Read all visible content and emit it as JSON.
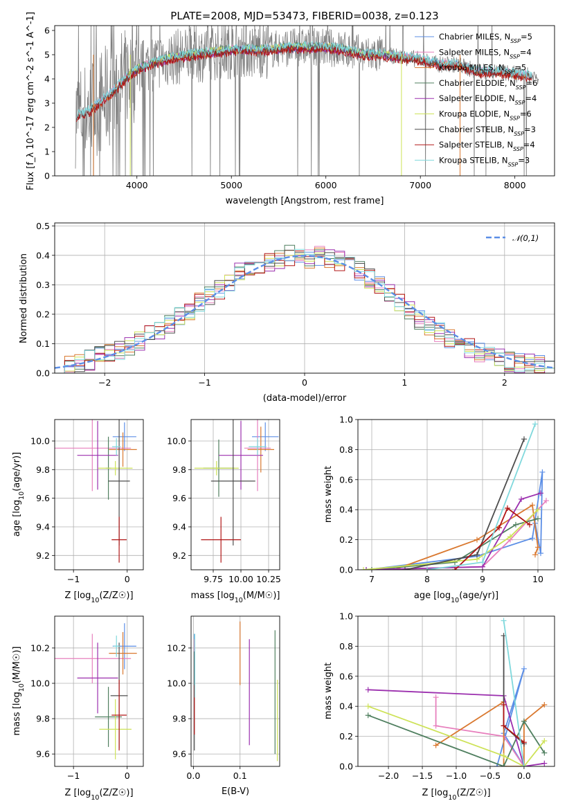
{
  "colors": {
    "Chabrier MILES": "#5b8ee6",
    "Salpeter MILES": "#e77fbd",
    "Kroupa MILES": "#d9782f",
    "Chabrier ELODIE": "#4f7f5f",
    "Salpeter ELODIE": "#9b2fae",
    "Kroupa ELODIE": "#cde257",
    "Chabrier STELIB": "#4d4d4d",
    "Salpeter STELIB": "#b01515",
    "Kroupa STELIB": "#7fd8dc",
    "normal_curve": "#5b8ee6"
  },
  "chart_data": [
    {
      "id": "spectrum",
      "type": "line",
      "title": "PLATE=2008, MJD=53473, FIBERID=0038, z=0.123",
      "xlabel": "wavelength [Angstrom, rest frame]",
      "ylabel": "Flux [f_λ 10^-17 erg cm^-2 s^-1 A^-1]",
      "xlim": [
        3130,
        8420
      ],
      "ylim": [
        0,
        6.2
      ],
      "xticks": [
        4000,
        5000,
        6000,
        7000,
        8000
      ],
      "yticks": [
        0,
        1,
        2,
        3,
        4,
        5,
        6
      ],
      "data_series": {
        "name": "",
        "color": "#808080",
        "x": [
          3400,
          3500,
          3600,
          3700,
          3800,
          3900,
          4000,
          4200,
          4400,
          4600,
          4800,
          5000,
          5200,
          5400,
          5600,
          5800,
          6000,
          6200,
          6400,
          6600,
          6800,
          7000,
          7200,
          7400,
          7600,
          7800,
          8000,
          8200
        ],
        "y": [
          2.5,
          2.7,
          3.0,
          3.3,
          3.7,
          4.1,
          4.4,
          4.7,
          4.9,
          5.0,
          5.1,
          5.2,
          5.2,
          5.2,
          5.3,
          5.3,
          5.3,
          5.2,
          5.0,
          5.0,
          4.9,
          4.8,
          4.6,
          4.6,
          4.3,
          4.3,
          4.2,
          4.1
        ]
      },
      "model_series": [
        {
          "name": "Chabrier MILES, N_SSP=5",
          "legend_label": "Chabrier MILES, N",
          "legend_sub": "SSP",
          "legend_n": "=5",
          "y_offset": 0.0
        },
        {
          "name": "Salpeter MILES, N_SSP=4",
          "legend_label": "Salpeter MILES, N",
          "legend_sub": "SSP",
          "legend_n": "=4",
          "y_offset": 0.03
        },
        {
          "name": "Kroupa MILES, N_SSP=5",
          "legend_label": "Kroupa MILES, N",
          "legend_sub": "SSP",
          "legend_n": "=5",
          "y_offset": -0.03
        },
        {
          "name": "Chabrier ELODIE, N_SSP=6",
          "legend_label": "Chabrier ELODIE, N",
          "legend_sub": "SSP",
          "legend_n": "=6",
          "y_offset": 0.05
        },
        {
          "name": "Salpeter ELODIE, N_SSP=4",
          "legend_label": "Salpeter ELODIE, N",
          "legend_sub": "SSP",
          "legend_n": "=4",
          "y_offset": -0.05
        },
        {
          "name": "Kroupa ELODIE, N_SSP=6",
          "legend_label": "Kroupa ELODIE, N",
          "legend_sub": "SSP",
          "legend_n": "=6",
          "y_offset": 0.02
        },
        {
          "name": "Chabrier STELIB, N_SSP=3",
          "legend_label": "Chabrier STELIB, N",
          "legend_sub": "SSP",
          "legend_n": "=3",
          "y_offset": -0.02
        },
        {
          "name": "Salpeter STELIB, N_SSP=4",
          "legend_label": "Salpeter STELIB, N",
          "legend_sub": "SSP",
          "legend_n": "=4",
          "y_offset": -0.1
        },
        {
          "name": "Kroupa STELIB, N_SSP=3",
          "legend_label": "Kroupa STELIB, N",
          "legend_sub": "SSP",
          "legend_n": "=3",
          "y_offset": 0.08
        }
      ],
      "legend_position": "upper right"
    },
    {
      "id": "residuals",
      "type": "histogram",
      "xlabel": "(data-model)/error",
      "ylabel": "Normed distribution",
      "xlim": [
        -2.5,
        2.5
      ],
      "ylim": [
        0,
        0.51
      ],
      "xticks": [
        -2,
        -1,
        0,
        1,
        2
      ],
      "yticks": [
        0.0,
        0.1,
        0.2,
        0.3,
        0.4,
        0.5
      ],
      "bin_edges": [
        -2.5,
        -2.4,
        -2.3,
        -2.2,
        -2.1,
        -2.0,
        -1.9,
        -1.8,
        -1.7,
        -1.6,
        -1.5,
        -1.4,
        -1.3,
        -1.2,
        -1.1,
        -1.0,
        -0.9,
        -0.8,
        -0.7,
        -0.6,
        -0.5,
        -0.4,
        -0.3,
        -0.2,
        -0.1,
        0.0,
        0.1,
        0.2,
        0.3,
        0.4,
        0.5,
        0.6,
        0.7,
        0.8,
        0.9,
        1.0,
        1.1,
        1.2,
        1.3,
        1.4,
        1.5,
        1.6,
        1.7,
        1.8,
        1.9,
        2.0,
        2.1,
        2.2,
        2.3,
        2.4,
        2.5
      ],
      "base_density": [
        0.02,
        0.025,
        0.035,
        0.045,
        0.06,
        0.07,
        0.08,
        0.095,
        0.11,
        0.13,
        0.15,
        0.17,
        0.19,
        0.21,
        0.24,
        0.26,
        0.28,
        0.31,
        0.34,
        0.36,
        0.37,
        0.38,
        0.39,
        0.4,
        0.39,
        0.39,
        0.4,
        0.39,
        0.38,
        0.37,
        0.35,
        0.32,
        0.3,
        0.27,
        0.24,
        0.21,
        0.18,
        0.16,
        0.14,
        0.12,
        0.1,
        0.085,
        0.07,
        0.06,
        0.05,
        0.04,
        0.035,
        0.03,
        0.025,
        0.02
      ],
      "curve": {
        "name": "𝒩(0,1)",
        "mean": 0,
        "sigma": 1,
        "style": "dashed"
      },
      "legend_position": "upper right"
    },
    {
      "id": "age_vs_Z",
      "type": "errorbar",
      "xlabel_main": "Z [log",
      "xlabel_sub": "10",
      "xlabel_rest": "(Z/Z☉)]",
      "ylabel_main": "age  [log",
      "ylabel_sub": "10",
      "ylabel_rest": "(age/yr)]",
      "xlim": [
        -1.35,
        0.3
      ],
      "ylim": [
        9.1,
        10.15
      ],
      "xticks": [
        -1,
        0
      ],
      "yticks": [
        9.2,
        9.4,
        9.6,
        9.8,
        10.0
      ],
      "points": [
        {
          "series": "Chabrier MILES",
          "x": -0.05,
          "y": 10.03,
          "xerr": 0.22,
          "yerr": 0.1
        },
        {
          "series": "Salpeter MILES",
          "x": -0.65,
          "y": 9.95,
          "xerr": 0.72,
          "yerr": 0.3
        },
        {
          "series": "Kroupa MILES",
          "x": -0.08,
          "y": 9.94,
          "xerr": 0.26,
          "yerr": 0.12
        },
        {
          "series": "Chabrier ELODIE",
          "x": -0.35,
          "y": 9.81,
          "xerr": 0.05,
          "yerr": 0.22
        },
        {
          "series": "Salpeter ELODIE",
          "x": -0.55,
          "y": 9.9,
          "xerr": 0.38,
          "yerr": 0.24
        },
        {
          "series": "Kroupa ELODIE",
          "x": -0.22,
          "y": 9.81,
          "xerr": 0.32,
          "yerr": 0.05
        },
        {
          "series": "Chabrier STELIB",
          "x": -0.15,
          "y": 9.72,
          "xerr": 0.2,
          "yerr": 0.45
        },
        {
          "series": "Salpeter STELIB",
          "x": -0.15,
          "y": 9.31,
          "xerr": 0.14,
          "yerr": 0.16
        },
        {
          "series": "Kroupa STELIB",
          "x": -0.2,
          "y": 9.96,
          "xerr": 0.08,
          "yerr": 0.06
        }
      ]
    },
    {
      "id": "age_vs_mass",
      "type": "errorbar",
      "xlabel_main": "mass [log",
      "xlabel_sub": "10",
      "xlabel_rest": "(M/M☉)]",
      "xlim": [
        9.55,
        10.35
      ],
      "ylim": [
        9.1,
        10.15
      ],
      "xticks": [
        9.75,
        10.0,
        10.25
      ],
      "xtick_labels": [
        "9.75",
        "10.00",
        "10.25"
      ],
      "yticks": [
        9.2,
        9.4,
        9.6,
        9.8,
        10.0
      ],
      "points": [
        {
          "series": "Chabrier MILES",
          "x": 10.22,
          "y": 10.03,
          "xerr": 0.12,
          "yerr": 0.1
        },
        {
          "series": "Salpeter MILES",
          "x": 10.15,
          "y": 9.95,
          "xerr": 0.12,
          "yerr": 0.3
        },
        {
          "series": "Kroupa MILES",
          "x": 10.18,
          "y": 9.94,
          "xerr": 0.12,
          "yerr": 0.16
        },
        {
          "series": "Chabrier ELODIE",
          "x": 9.8,
          "y": 9.81,
          "xerr": 0.14,
          "yerr": 0.2
        },
        {
          "series": "Salpeter ELODIE",
          "x": 10.0,
          "y": 9.9,
          "xerr": 0.2,
          "yerr": 0.24
        },
        {
          "series": "Kroupa ELODIE",
          "x": 9.78,
          "y": 9.81,
          "xerr": 0.2,
          "yerr": 0.05
        },
        {
          "series": "Chabrier STELIB",
          "x": 9.93,
          "y": 9.72,
          "xerr": 0.2,
          "yerr": 0.45
        },
        {
          "series": "Salpeter STELIB",
          "x": 9.82,
          "y": 9.31,
          "xerr": 0.18,
          "yerr": 0.16
        },
        {
          "series": "Kroupa STELIB",
          "x": 10.15,
          "y": 9.96,
          "xerr": 0.08,
          "yerr": 0.06
        }
      ]
    },
    {
      "id": "massweight_vs_age",
      "type": "line",
      "xlabel_main": "age  [log",
      "xlabel_sub": "10",
      "xlabel_rest": "(age/yr)]",
      "ylabel": "mass weight",
      "xlim": [
        6.75,
        10.3
      ],
      "ylim": [
        0,
        1.0
      ],
      "xticks": [
        7,
        8,
        9,
        10
      ],
      "yticks": [
        0.0,
        0.2,
        0.4,
        0.6,
        0.8,
        1.0
      ],
      "series": [
        {
          "series": "Chabrier MILES",
          "x": [
            6.9,
            8.9,
            9.9,
            10.08,
            10.05,
            9.95
          ],
          "y": [
            0.0,
            0.09,
            0.21,
            0.65,
            0.11,
            0.31
          ]
        },
        {
          "series": "Salpeter MILES",
          "x": [
            7.0,
            9.0,
            9.5,
            10.15
          ],
          "y": [
            0.0,
            0.02,
            0.2,
            0.46
          ]
        },
        {
          "series": "Kroupa MILES",
          "x": [
            7.4,
            8.9,
            9.9,
            10.0,
            9.95
          ],
          "y": [
            0.0,
            0.2,
            0.43,
            0.15,
            0.1
          ]
        },
        {
          "series": "Chabrier ELODIE",
          "x": [
            7.0,
            8.5,
            9.6,
            10.0
          ],
          "y": [
            0.0,
            0.05,
            0.3,
            0.34
          ]
        },
        {
          "series": "Salpeter ELODIE",
          "x": [
            6.9,
            9.0,
            9.7,
            10.05
          ],
          "y": [
            0.0,
            0.02,
            0.47,
            0.51
          ]
        },
        {
          "series": "Kroupa ELODIE",
          "x": [
            6.85,
            8.9,
            9.5,
            10.0
          ],
          "y": [
            0.0,
            0.07,
            0.22,
            0.4
          ]
        },
        {
          "series": "Chabrier STELIB",
          "x": [
            7.6,
            8.9,
            9.75
          ],
          "y": [
            0.0,
            0.1,
            0.87
          ]
        },
        {
          "series": "Salpeter STELIB",
          "x": [
            8.5,
            9.3,
            9.45,
            9.85
          ],
          "y": [
            0.0,
            0.28,
            0.41,
            0.3
          ]
        },
        {
          "series": "Kroupa STELIB",
          "x": [
            8.0,
            9.0,
            9.95
          ],
          "y": [
            0.0,
            0.05,
            0.97
          ]
        }
      ]
    },
    {
      "id": "mass_vs_Z",
      "type": "errorbar",
      "xlabel_main": "Z [log",
      "xlabel_sub": "10",
      "xlabel_rest": "(Z/Z☉)]",
      "ylabel_main": "mass [log",
      "ylabel_sub": "10",
      "ylabel_rest": "(M/M☉)]",
      "xlim": [
        -1.35,
        0.3
      ],
      "ylim": [
        9.53,
        10.38
      ],
      "xticks": [
        -1,
        0
      ],
      "yticks": [
        9.6,
        9.8,
        10.0,
        10.2
      ],
      "points": [
        {
          "series": "Chabrier MILES",
          "x": -0.05,
          "y": 10.21,
          "xerr": 0.22,
          "yerr": 0.13
        },
        {
          "series": "Salpeter MILES",
          "x": -0.65,
          "y": 10.14,
          "xerr": 0.72,
          "yerr": 0.14
        },
        {
          "series": "Kroupa MILES",
          "x": -0.08,
          "y": 10.17,
          "xerr": 0.26,
          "yerr": 0.12
        },
        {
          "series": "Chabrier ELODIE",
          "x": -0.35,
          "y": 9.81,
          "xerr": 0.25,
          "yerr": 0.17
        },
        {
          "series": "Salpeter ELODIE",
          "x": -0.55,
          "y": 10.03,
          "xerr": 0.38,
          "yerr": 0.2
        },
        {
          "series": "Kroupa ELODIE",
          "x": -0.22,
          "y": 9.74,
          "xerr": 0.3,
          "yerr": 0.17
        },
        {
          "series": "Chabrier STELIB",
          "x": -0.15,
          "y": 9.93,
          "xerr": 0.16,
          "yerr": 0.3
        },
        {
          "series": "Salpeter STELIB",
          "x": -0.15,
          "y": 9.82,
          "xerr": 0.14,
          "yerr": 0.2
        },
        {
          "series": "Kroupa STELIB",
          "x": -0.2,
          "y": 10.21,
          "xerr": 0.06,
          "yerr": 0.06
        }
      ]
    },
    {
      "id": "mass_vs_EBV",
      "type": "errorbar",
      "xlabel": "E(B-V)",
      "xlim": [
        -0.005,
        0.185
      ],
      "ylim": [
        9.53,
        10.38
      ],
      "xticks": [
        0.0,
        0.1
      ],
      "xtick_labels": [
        "0.0",
        "0.1"
      ],
      "yticks": [
        9.6,
        9.8,
        10.0,
        10.2
      ],
      "points": [
        {
          "series": "Chabrier MILES",
          "x": 0.002,
          "y": 10.1,
          "xerr": 0,
          "yerr": 0.18
        },
        {
          "series": "Salpeter MILES",
          "x": 0.002,
          "y": 10.1,
          "xerr": 0,
          "yerr": 0.15
        },
        {
          "series": "Kroupa MILES",
          "x": 0.1,
          "y": 10.17,
          "xerr": 0,
          "yerr": 0.18
        },
        {
          "series": "Chabrier ELODIE",
          "x": 0.175,
          "y": 9.95,
          "xerr": 0,
          "yerr": 0.35
        },
        {
          "series": "Salpeter ELODIE",
          "x": 0.12,
          "y": 9.95,
          "xerr": 0,
          "yerr": 0.3
        },
        {
          "series": "Kroupa ELODIE",
          "x": 0.18,
          "y": 9.79,
          "xerr": 0,
          "yerr": 0.23
        },
        {
          "series": "Chabrier STELIB",
          "x": 0.002,
          "y": 9.9,
          "xerr": 0,
          "yerr": 0.28
        },
        {
          "series": "Salpeter STELIB",
          "x": 0.002,
          "y": 9.85,
          "xerr": 0,
          "yerr": 0.14
        },
        {
          "series": "Kroupa STELIB",
          "x": 0.003,
          "y": 10.1,
          "xerr": 0,
          "yerr": 0.18
        }
      ]
    },
    {
      "id": "massweight_vs_Z",
      "type": "line",
      "xlabel_main": "Z [log",
      "xlabel_sub": "10",
      "xlabel_rest": "(Z/Z☉)]",
      "ylabel": "mass weight",
      "xlim": [
        -2.45,
        0.45
      ],
      "ylim": [
        0,
        1.0
      ],
      "xticks": [
        -2.0,
        -1.5,
        -1.0,
        -0.5,
        0.0
      ],
      "xtick_labels": [
        "−2.0",
        "−1.5",
        "−1.0",
        "−0.5",
        "0.0"
      ],
      "yticks": [
        0.0,
        0.2,
        0.4,
        0.6,
        0.8,
        1.0
      ],
      "series": [
        {
          "series": "Chabrier MILES",
          "x": [
            -0.4,
            0.0,
            -0.3,
            0.0
          ],
          "y": [
            0.0,
            0.65,
            0.22,
            0.0
          ]
        },
        {
          "series": "Salpeter MILES",
          "x": [
            -1.3,
            -1.3,
            -0.3,
            0.0
          ],
          "y": [
            0.46,
            0.27,
            0.2,
            0.0
          ]
        },
        {
          "series": "Kroupa MILES",
          "x": [
            -1.3,
            -0.3,
            -0.3,
            0.0,
            0.0,
            0.3
          ],
          "y": [
            0.14,
            0.43,
            0.0,
            0.0,
            0.3,
            0.41
          ]
        },
        {
          "series": "Chabrier ELODIE",
          "x": [
            -2.3,
            -0.3,
            0.0,
            0.3
          ],
          "y": [
            0.34,
            0.0,
            0.3,
            0.09
          ]
        },
        {
          "series": "Salpeter ELODIE",
          "x": [
            -2.3,
            -0.3,
            0.0,
            0.3
          ],
          "y": [
            0.51,
            0.47,
            0.0,
            0.02
          ]
        },
        {
          "series": "Kroupa ELODIE",
          "x": [
            -2.3,
            -0.3,
            0.0,
            0.3
          ],
          "y": [
            0.4,
            0.07,
            0.0,
            0.17
          ]
        },
        {
          "series": "Chabrier STELIB",
          "x": [
            -0.3,
            -0.3,
            0.0
          ],
          "y": [
            0.87,
            0.27,
            0.15
          ]
        },
        {
          "series": "Salpeter STELIB",
          "x": [
            -0.3,
            -0.3,
            0.0
          ],
          "y": [
            0.41,
            0.27,
            0.16
          ]
        },
        {
          "series": "Kroupa STELIB",
          "x": [
            -0.3,
            0.0
          ],
          "y": [
            0.97,
            0.0
          ]
        }
      ]
    }
  ]
}
